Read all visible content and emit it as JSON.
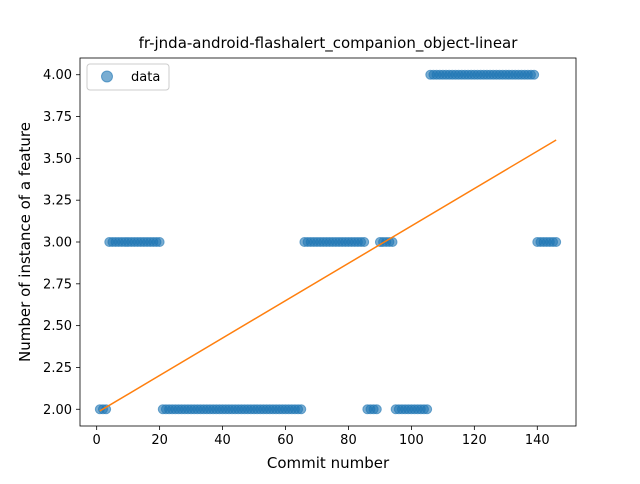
{
  "chart_data": {
    "type": "scatter",
    "title": "fr-jnda-android-flashalert_companion_object-linear",
    "xlabel": "Commit number",
    "ylabel": "Number of instance of a feature",
    "xlim": [
      -5.3,
      152.3
    ],
    "ylim": [
      1.9,
      4.1
    ],
    "xticks": [
      0,
      20,
      40,
      60,
      80,
      100,
      120,
      140
    ],
    "xtick_labels": [
      "0",
      "20",
      "40",
      "60",
      "80",
      "100",
      "120",
      "140"
    ],
    "yticks": [
      2.0,
      2.25,
      2.5,
      2.75,
      3.0,
      3.25,
      3.5,
      3.75,
      4.0
    ],
    "ytick_labels": [
      "2.00",
      "2.25",
      "2.50",
      "2.75",
      "3.00",
      "3.25",
      "3.50",
      "3.75",
      "4.00"
    ],
    "grid": false,
    "legend": {
      "position": "top-left",
      "entries": [
        "data"
      ]
    },
    "series": [
      {
        "name": "data",
        "kind": "scatter",
        "color": "#1f77b4",
        "x": [
          1,
          2,
          3,
          4,
          5,
          6,
          7,
          8,
          9,
          10,
          11,
          12,
          13,
          14,
          15,
          16,
          17,
          18,
          19,
          20,
          21,
          22,
          23,
          24,
          25,
          26,
          27,
          28,
          29,
          30,
          31,
          32,
          33,
          34,
          35,
          36,
          37,
          38,
          39,
          40,
          41,
          42,
          43,
          44,
          45,
          46,
          47,
          48,
          49,
          50,
          51,
          52,
          53,
          54,
          55,
          56,
          57,
          58,
          59,
          60,
          61,
          62,
          63,
          64,
          65,
          66,
          67,
          68,
          69,
          70,
          71,
          72,
          73,
          74,
          75,
          76,
          77,
          78,
          79,
          80,
          81,
          82,
          83,
          84,
          85,
          86,
          87,
          88,
          89,
          90,
          91,
          92,
          93,
          94,
          95,
          96,
          97,
          98,
          99,
          100,
          101,
          102,
          103,
          104,
          105,
          106,
          107,
          108,
          109,
          110,
          111,
          112,
          113,
          114,
          115,
          116,
          117,
          118,
          119,
          120,
          121,
          122,
          123,
          124,
          125,
          126,
          127,
          128,
          129,
          130,
          131,
          132,
          133,
          134,
          135,
          136,
          137,
          138,
          139,
          140,
          141,
          142,
          143,
          144,
          145,
          146
        ],
        "y": [
          2,
          2,
          2,
          3,
          3,
          3,
          3,
          3,
          3,
          3,
          3,
          3,
          3,
          3,
          3,
          3,
          3,
          3,
          3,
          3,
          2,
          2,
          2,
          2,
          2,
          2,
          2,
          2,
          2,
          2,
          2,
          2,
          2,
          2,
          2,
          2,
          2,
          2,
          2,
          2,
          2,
          2,
          2,
          2,
          2,
          2,
          2,
          2,
          2,
          2,
          2,
          2,
          2,
          2,
          2,
          2,
          2,
          2,
          2,
          2,
          2,
          2,
          2,
          2,
          2,
          3,
          3,
          3,
          3,
          3,
          3,
          3,
          3,
          3,
          3,
          3,
          3,
          3,
          3,
          3,
          3,
          3,
          3,
          3,
          3,
          2,
          2,
          2,
          2,
          3,
          3,
          3,
          3,
          3,
          2,
          2,
          2,
          2,
          2,
          2,
          2,
          2,
          2,
          2,
          2,
          4,
          4,
          4,
          4,
          4,
          4,
          4,
          4,
          4,
          4,
          4,
          4,
          4,
          4,
          4,
          4,
          4,
          4,
          4,
          4,
          4,
          4,
          4,
          4,
          4,
          4,
          4,
          4,
          4,
          4,
          4,
          4,
          4,
          4,
          3,
          3,
          3,
          3,
          3,
          3,
          3
        ]
      },
      {
        "name": "",
        "kind": "line",
        "color": "#ff7f0e",
        "x": [
          1,
          146
        ],
        "y": [
          1.99,
          3.61
        ]
      }
    ]
  }
}
